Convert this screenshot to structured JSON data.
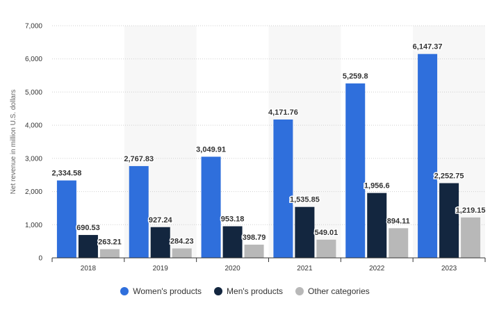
{
  "chart_data": {
    "type": "bar",
    "title": "",
    "xlabel": "",
    "ylabel": "Net revenue in million U.S. dollars",
    "ylim": [
      0,
      7000
    ],
    "yticks": [
      0,
      1000,
      2000,
      3000,
      4000,
      5000,
      6000,
      7000
    ],
    "ytick_labels": [
      "0",
      "1,000",
      "2,000",
      "3,000",
      "4,000",
      "5,000",
      "6,000",
      "7,000"
    ],
    "grid": true,
    "legend_position": "bottom",
    "categories": [
      "2018",
      "2019",
      "2020",
      "2021",
      "2022",
      "2023"
    ],
    "series": [
      {
        "name": "Women's products",
        "color": "#2f6fdc",
        "values": [
          2334.58,
          2767.83,
          3049.91,
          4171.76,
          5259.8,
          6147.37
        ],
        "labels": [
          "2,334.58",
          "2,767.83",
          "3,049.91",
          "4,171.76",
          "5,259.8",
          "6,147.37"
        ]
      },
      {
        "name": "Men's products",
        "color": "#13263f",
        "values": [
          690.53,
          927.24,
          953.18,
          1535.85,
          1956.6,
          2252.75
        ],
        "labels": [
          "690.53",
          "927.24",
          "953.18",
          "1,535.85",
          "1,956.6",
          "2,252.75"
        ]
      },
      {
        "name": "Other categories",
        "color": "#b8b8b8",
        "values": [
          263.21,
          284.23,
          398.79,
          549.01,
          894.11,
          1219.15
        ],
        "labels": [
          "263.21",
          "284.23",
          "398.79",
          "549.01",
          "894.11",
          "1,219.15"
        ]
      }
    ]
  }
}
